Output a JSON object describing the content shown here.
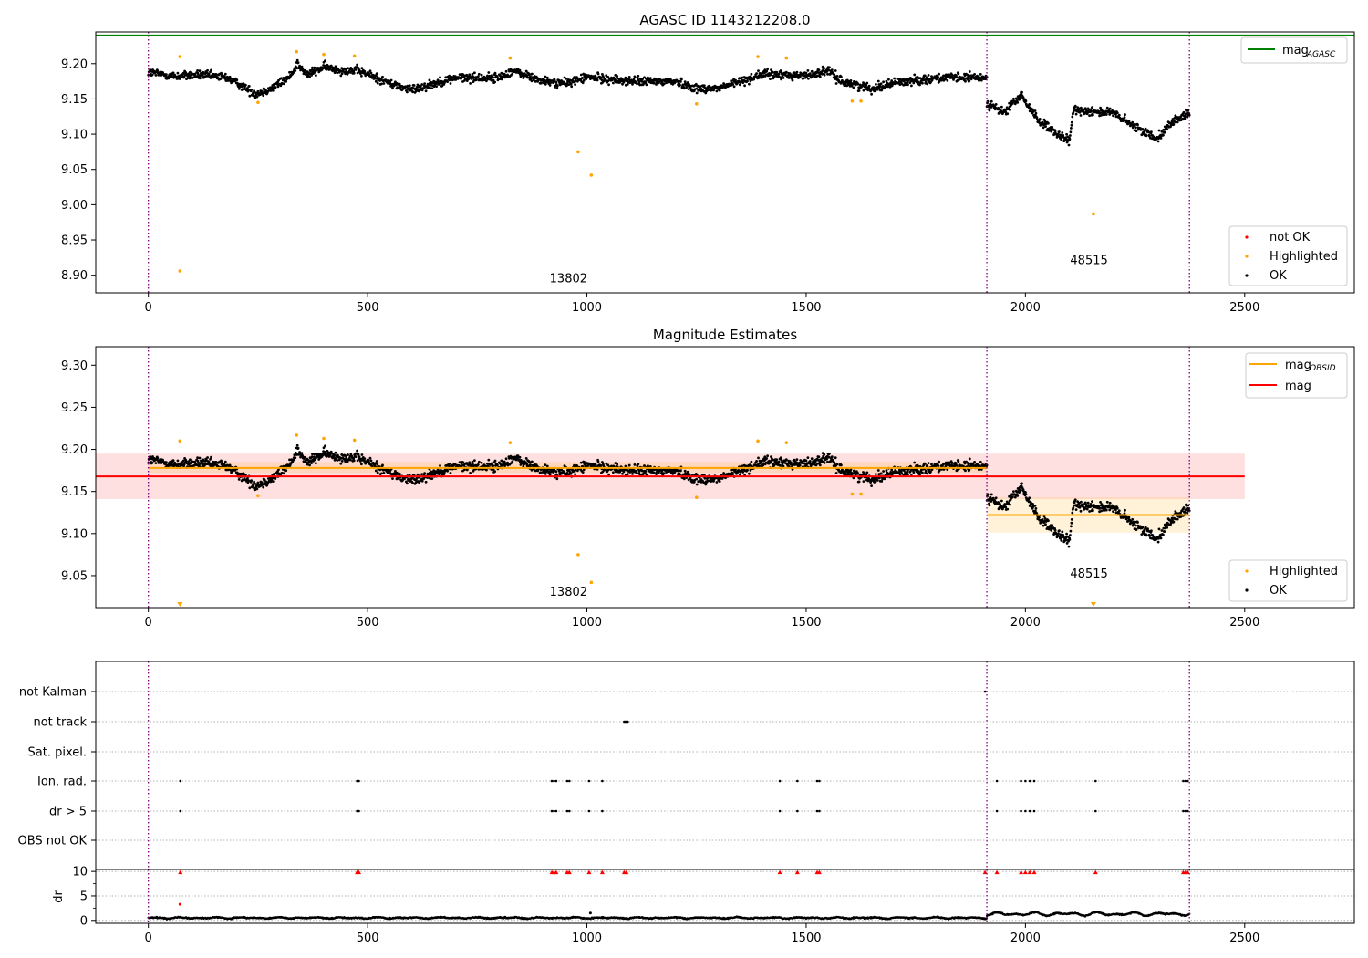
{
  "chart_data": [
    {
      "type": "scatter",
      "title": "AGASC ID 1143212208.0",
      "xlim": [
        -120,
        2750
      ],
      "ylim": [
        8.875,
        9.245
      ],
      "xticks": [
        0,
        500,
        1000,
        1500,
        2000,
        2500
      ],
      "yticks": [
        8.9,
        8.95,
        9.0,
        9.05,
        9.1,
        9.15,
        9.2
      ],
      "obsid_boundaries": [
        0,
        1912,
        2374
      ],
      "obsid_labels": [
        {
          "text": "13802",
          "x": 958,
          "y": 8.89
        },
        {
          "text": "48515",
          "x": 2145,
          "y": 8.916
        }
      ],
      "reference_lines": [
        {
          "name": "mag_AGASC",
          "y": 9.24,
          "color": "#008000",
          "x_range": [
            -120,
            2750
          ]
        }
      ],
      "legend_lines": [
        {
          "label_main": "mag",
          "label_sub": "AGASC",
          "color": "#008000"
        }
      ],
      "legend_points": [
        {
          "label": "not OK",
          "color": "#ff0000"
        },
        {
          "label": "Highlighted",
          "color": "#ffa500"
        },
        {
          "label": "OK",
          "color": "#000000"
        }
      ],
      "ok_series_segments": [
        {
          "x": [
            0,
            1912
          ],
          "trend": [
            [
              0,
              9.188
            ],
            [
              60,
              9.182
            ],
            [
              120,
              9.184
            ],
            [
              180,
              9.18
            ],
            [
              215,
              9.168
            ],
            [
              245,
              9.157
            ],
            [
              280,
              9.165
            ],
            [
              320,
              9.18
            ],
            [
              340,
              9.2
            ],
            [
              360,
              9.184
            ],
            [
              400,
              9.195
            ],
            [
              440,
              9.191
            ],
            [
              480,
              9.19
            ],
            [
              520,
              9.18
            ],
            [
              560,
              9.17
            ],
            [
              600,
              9.163
            ],
            [
              640,
              9.17
            ],
            [
              700,
              9.18
            ],
            [
              800,
              9.18
            ],
            [
              830,
              9.19
            ],
            [
              900,
              9.175
            ],
            [
              950,
              9.172
            ],
            [
              1000,
              9.181
            ],
            [
              1100,
              9.175
            ],
            [
              1200,
              9.175
            ],
            [
              1250,
              9.165
            ],
            [
              1300,
              9.165
            ],
            [
              1400,
              9.185
            ],
            [
              1500,
              9.183
            ],
            [
              1550,
              9.19
            ],
            [
              1580,
              9.175
            ],
            [
              1650,
              9.165
            ],
            [
              1700,
              9.173
            ],
            [
              1800,
              9.18
            ],
            [
              1900,
              9.18
            ]
          ],
          "noise": 0.011
        },
        {
          "x": [
            1912,
            2374
          ],
          "trend": [
            [
              1912,
              9.145
            ],
            [
              1950,
              9.13
            ],
            [
              1990,
              9.155
            ],
            [
              2030,
              9.12
            ],
            [
              2070,
              9.1
            ],
            [
              2100,
              9.09
            ],
            [
              2110,
              9.135
            ],
            [
              2200,
              9.13
            ],
            [
              2250,
              9.11
            ],
            [
              2300,
              9.095
            ],
            [
              2340,
              9.12
            ],
            [
              2374,
              9.13
            ]
          ],
          "noise": 0.011
        }
      ],
      "highlighted_points": [
        [
          72,
          8.906
        ],
        [
          72,
          9.21
        ],
        [
          250,
          9.145
        ],
        [
          338,
          9.217
        ],
        [
          400,
          9.213
        ],
        [
          470,
          9.211
        ],
        [
          825,
          9.208
        ],
        [
          980,
          9.075
        ],
        [
          1010,
          9.042
        ],
        [
          1250,
          9.143
        ],
        [
          1390,
          9.21
        ],
        [
          1455,
          9.208
        ],
        [
          1605,
          9.147
        ],
        [
          1625,
          9.147
        ],
        [
          2155,
          8.987
        ]
      ]
    },
    {
      "type": "scatter",
      "title": "Magnitude Estimates",
      "xlim": [
        -120,
        2750
      ],
      "ylim": [
        9.012,
        9.322
      ],
      "xticks": [
        0,
        500,
        1000,
        1500,
        2000,
        2500
      ],
      "yticks": [
        9.05,
        9.1,
        9.15,
        9.2,
        9.25,
        9.3
      ],
      "obsid_boundaries": [
        0,
        1912,
        2374
      ],
      "obsid_labels": [
        {
          "text": "13802",
          "x": 958,
          "y": 9.026
        },
        {
          "text": "48515",
          "x": 2145,
          "y": 9.048
        }
      ],
      "bands": [
        {
          "name": "mag",
          "x_range": [
            -120,
            2500
          ],
          "y_range": [
            9.141,
            9.195
          ],
          "color": "#ff0000",
          "opacity": 0.12
        },
        {
          "name": "mag_OBSID 13802",
          "x_range": [
            0,
            1912
          ],
          "y_range": [
            9.172,
            9.185
          ],
          "color": "#ffa500",
          "opacity": 0.15
        },
        {
          "name": "mag_OBSID 48515",
          "x_range": [
            1912,
            2374
          ],
          "y_range": [
            9.101,
            9.143
          ],
          "color": "#ffa500",
          "opacity": 0.15
        }
      ],
      "reference_lines": [
        {
          "name": "mag",
          "y": 9.168,
          "color": "#ff0000",
          "x_range": [
            -120,
            2500
          ]
        },
        {
          "name": "mag_OBSID 13802",
          "y": 9.178,
          "color": "#ffa500",
          "x_range": [
            0,
            1912
          ]
        },
        {
          "name": "mag_OBSID 48515",
          "y": 9.122,
          "color": "#ffa500",
          "x_range": [
            1912,
            2374
          ]
        }
      ],
      "legend_lines": [
        {
          "label_main": "mag",
          "label_sub": "OBSID",
          "color": "#ffa500"
        },
        {
          "label_main": "mag",
          "label_sub": "",
          "color": "#ff0000"
        }
      ],
      "legend_points": [
        {
          "label": "Highlighted",
          "color": "#ffa500"
        },
        {
          "label": "OK",
          "color": "#000000"
        }
      ],
      "ok_series_segments": [
        {
          "x": [
            0,
            1912
          ],
          "trend": [
            [
              0,
              9.188
            ],
            [
              60,
              9.182
            ],
            [
              120,
              9.184
            ],
            [
              180,
              9.18
            ],
            [
              215,
              9.168
            ],
            [
              245,
              9.157
            ],
            [
              280,
              9.165
            ],
            [
              320,
              9.18
            ],
            [
              340,
              9.2
            ],
            [
              360,
              9.184
            ],
            [
              400,
              9.195
            ],
            [
              440,
              9.191
            ],
            [
              480,
              9.19
            ],
            [
              520,
              9.18
            ],
            [
              560,
              9.17
            ],
            [
              600,
              9.163
            ],
            [
              640,
              9.17
            ],
            [
              700,
              9.18
            ],
            [
              800,
              9.18
            ],
            [
              830,
              9.19
            ],
            [
              900,
              9.175
            ],
            [
              950,
              9.172
            ],
            [
              1000,
              9.181
            ],
            [
              1100,
              9.175
            ],
            [
              1200,
              9.175
            ],
            [
              1250,
              9.165
            ],
            [
              1300,
              9.165
            ],
            [
              1400,
              9.185
            ],
            [
              1500,
              9.183
            ],
            [
              1550,
              9.19
            ],
            [
              1580,
              9.175
            ],
            [
              1650,
              9.165
            ],
            [
              1700,
              9.173
            ],
            [
              1800,
              9.18
            ],
            [
              1900,
              9.18
            ]
          ],
          "noise": 0.011
        },
        {
          "x": [
            1912,
            2374
          ],
          "trend": [
            [
              1912,
              9.145
            ],
            [
              1950,
              9.13
            ],
            [
              1990,
              9.155
            ],
            [
              2030,
              9.12
            ],
            [
              2070,
              9.1
            ],
            [
              2100,
              9.09
            ],
            [
              2110,
              9.135
            ],
            [
              2200,
              9.13
            ],
            [
              2250,
              9.11
            ],
            [
              2300,
              9.095
            ],
            [
              2340,
              9.12
            ],
            [
              2374,
              9.13
            ]
          ],
          "noise": 0.011
        }
      ],
      "highlighted_points": [
        [
          72,
          9.21
        ],
        [
          250,
          9.145
        ],
        [
          338,
          9.217
        ],
        [
          400,
          9.213
        ],
        [
          470,
          9.211
        ],
        [
          825,
          9.208
        ],
        [
          980,
          9.075
        ],
        [
          1010,
          9.042
        ],
        [
          1250,
          9.143
        ],
        [
          1390,
          9.21
        ],
        [
          1455,
          9.208
        ],
        [
          1605,
          9.147
        ],
        [
          1625,
          9.147
        ]
      ],
      "out_of_range_markers": [
        [
          72,
          9.016
        ],
        [
          2155,
          9.016
        ]
      ]
    },
    {
      "type": "scatter",
      "title": "",
      "xlim": [
        -120,
        2750
      ],
      "xticks": [
        0,
        500,
        1000,
        1500,
        2000,
        2500
      ],
      "obsid_boundaries": [
        0,
        1912,
        2374
      ],
      "flag_rows": [
        "not Kalman",
        "not track",
        "Sat. pixel.",
        "Ion. rad.",
        "dr > 5",
        "OBS not OK"
      ],
      "flag_points": {
        "not Kalman": [
          1908
        ],
        "not track": [
          1085,
          1088,
          1090,
          1093
        ],
        "Sat. pixel.": [],
        "Ion. rad.": [
          73,
          476,
          480,
          920,
          925,
          930,
          955,
          960,
          1005,
          1035,
          1440,
          1480,
          1525,
          1530,
          1935,
          1990,
          2000,
          2010,
          2020,
          2160,
          2360,
          2365,
          2370
        ],
        "dr > 5": [
          73,
          476,
          480,
          920,
          925,
          930,
          955,
          960,
          1005,
          1035,
          1440,
          1480,
          1525,
          1530,
          1935,
          1990,
          2000,
          2010,
          2020,
          2160,
          2360,
          2365,
          2370
        ],
        "OBS not OK": []
      },
      "dr_ylabel": "dr",
      "dr_ylim": [
        -0.6,
        10.4
      ],
      "dr_yticks": [
        0,
        5,
        10
      ],
      "dr_series": [
        {
          "x_range": [
            0,
            1912
          ],
          "baseline": 0.35,
          "amplitude": 0.3
        },
        {
          "x_range": [
            1912,
            2374
          ],
          "baseline": 0.9,
          "amplitude": 0.8
        }
      ],
      "dr_extra_points": [
        [
          72,
          3.3
        ],
        [
          1008,
          1.5
        ]
      ],
      "dr_clipped_markers": [
        73,
        476,
        480,
        920,
        925,
        930,
        955,
        960,
        1005,
        1035,
        1085,
        1090,
        1440,
        1480,
        1525,
        1530,
        1908,
        1935,
        1990,
        2000,
        2010,
        2020,
        2160,
        2360,
        2365,
        2370
      ]
    }
  ]
}
